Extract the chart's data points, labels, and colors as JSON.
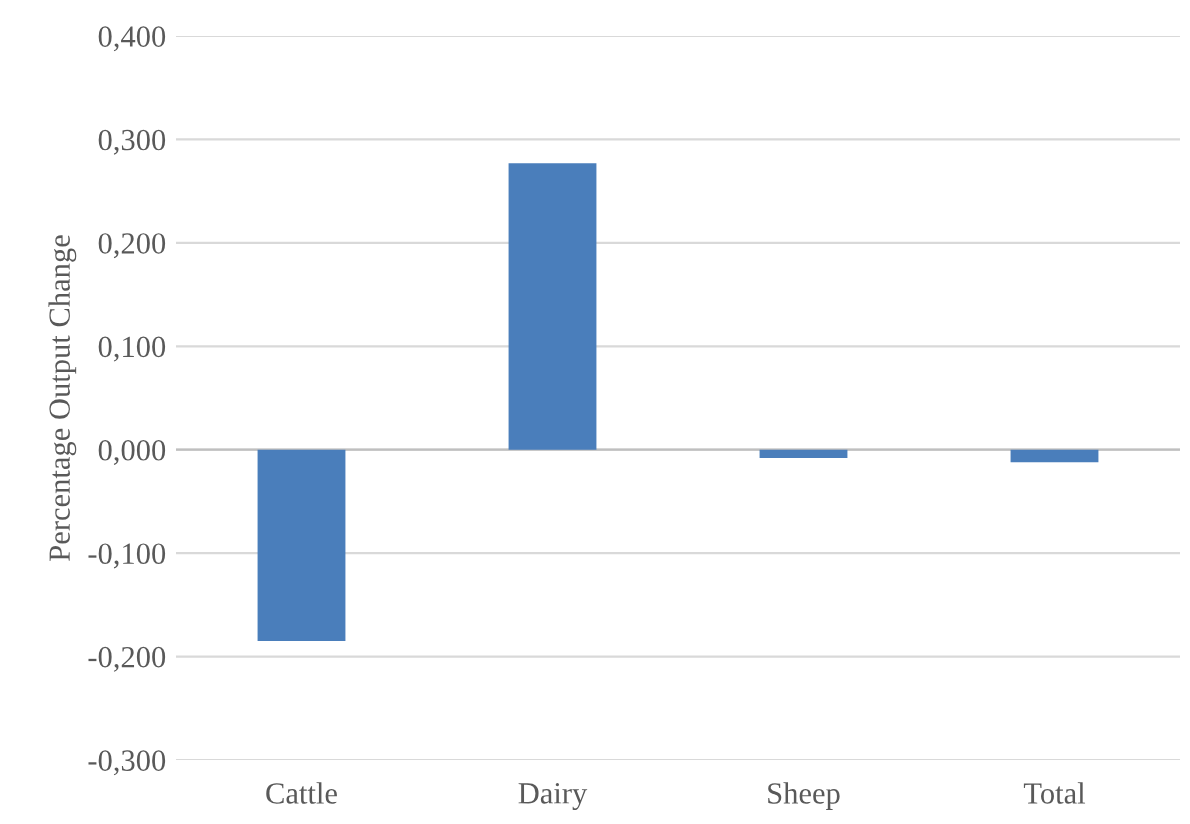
{
  "chart_data": {
    "type": "bar",
    "ylabel": "Percentage Output Change",
    "categories": [
      "Cattle",
      "Dairy",
      "Sheep",
      "Total"
    ],
    "values": [
      -0.185,
      0.277,
      -0.008,
      -0.012
    ],
    "color": "#4a7ebb",
    "ylim": [
      -0.3,
      0.4
    ],
    "yticks": [
      {
        "value": -0.3,
        "label": "-0,300"
      },
      {
        "value": -0.2,
        "label": "-0,200"
      },
      {
        "value": -0.1,
        "label": "-0,100"
      },
      {
        "value": 0,
        "label": "0,000"
      },
      {
        "value": 0.1,
        "label": "0,100"
      },
      {
        "value": 0.2,
        "label": "0,200"
      },
      {
        "value": 0.3,
        "label": "0,300"
      },
      {
        "value": 0.4,
        "label": "0,400"
      }
    ],
    "grid": "y"
  }
}
